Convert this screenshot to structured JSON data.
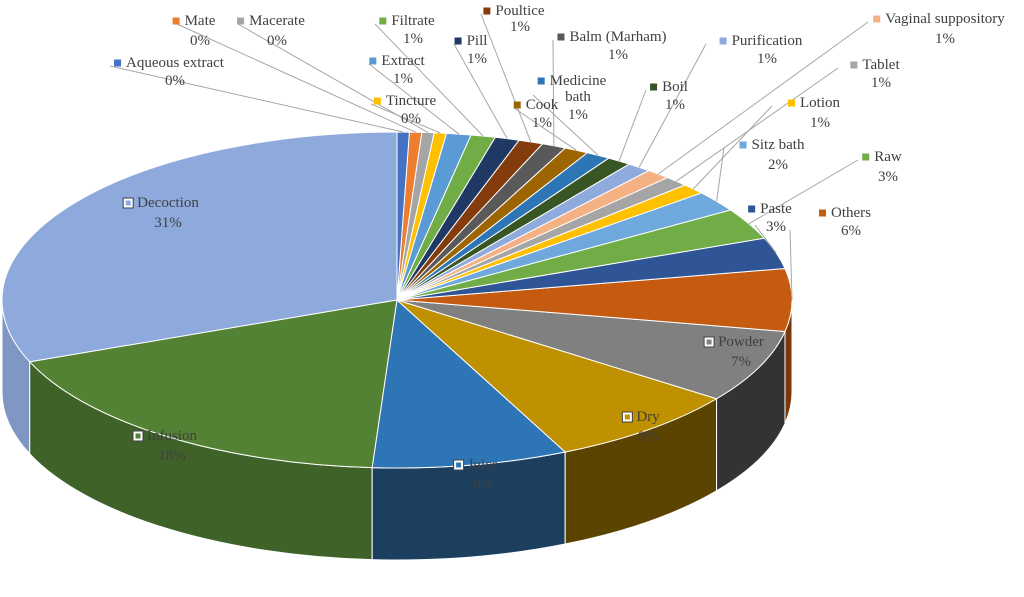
{
  "chart_data": {
    "type": "pie",
    "title": "",
    "slices": [
      {
        "label": "Decoction",
        "value": 31,
        "pct_label": "31%",
        "color": "#8EA9DB",
        "side": "#7F97C2"
      },
      {
        "label": "Infusion",
        "value": 18,
        "pct_label": "18%",
        "color": "#548235",
        "side": "#3F6228"
      },
      {
        "label": "Juice",
        "value": 8,
        "pct_label": "8%",
        "color": "#2E75B6",
        "side": "#1C3F60"
      },
      {
        "label": "Dry",
        "value": 8,
        "pct_label": "8%",
        "color": "#BF9000",
        "side": "#5B4300"
      },
      {
        "label": "Powder",
        "value": 7,
        "pct_label": "7%",
        "color": "#808080",
        "side": "#333333"
      },
      {
        "label": "Others",
        "value": 6,
        "pct_label": "6%",
        "color": "#C55A11",
        "side": "#7A3708"
      },
      {
        "label": "Paste",
        "value": 3,
        "pct_label": "3%",
        "color": "#2F5597",
        "side": "#1F3864"
      },
      {
        "label": "Raw",
        "value": 3,
        "pct_label": "3%",
        "color": "#70AD47",
        "side": "#4E7A32"
      },
      {
        "label": "Sitz bath",
        "value": 2,
        "pct_label": "2%",
        "color": "#6FA8DC",
        "side": "#4E7A9E"
      },
      {
        "label": "Lotion",
        "value": 1,
        "pct_label": "1%",
        "color": "#FFC000",
        "side": "#B38600"
      },
      {
        "label": "Tablet",
        "value": 1,
        "pct_label": "1%",
        "color": "#A5A5A5",
        "side": "#737373"
      },
      {
        "label": "Vaginal suppository",
        "value": 1,
        "pct_label": "1%",
        "color": "#F4B183",
        "side": "#B07E5C"
      },
      {
        "label": "Purification",
        "value": 1,
        "pct_label": "1%",
        "color": "#8FAADC",
        "side": "#64779A"
      },
      {
        "label": "Boil",
        "value": 1,
        "pct_label": "1%",
        "color": "#375623",
        "side": "#253A18"
      },
      {
        "label": "Medicine bath",
        "value": 1,
        "pct_label": "1%",
        "color": "#2E75B6",
        "side": "#1C4A73"
      },
      {
        "label": "Cook",
        "value": 1,
        "pct_label": "1%",
        "color": "#9C6500",
        "side": "#694400"
      },
      {
        "label": "Balm (Marham)",
        "value": 1,
        "pct_label": "1%",
        "color": "#595959",
        "side": "#3B3B3B"
      },
      {
        "label": "Poultice",
        "value": 1,
        "pct_label": "1%",
        "color": "#843C0C",
        "side": "#582808"
      },
      {
        "label": "Pill",
        "value": 1,
        "pct_label": "1%",
        "color": "#203864",
        "side": "#152543"
      },
      {
        "label": "Filtrate",
        "value": 1,
        "pct_label": "1%",
        "color": "#70AD47",
        "side": "#4E7A32"
      },
      {
        "label": "Extract",
        "value": 1,
        "pct_label": "1%",
        "color": "#5B9BD5",
        "side": "#3F6D95"
      },
      {
        "label": "Tincture",
        "value": 0.5,
        "pct_label": "0%",
        "color": "#FFC000",
        "side": "#B38600"
      },
      {
        "label": "Macerate",
        "value": 0.5,
        "pct_label": "0%",
        "color": "#A5A5A5",
        "side": "#737373"
      },
      {
        "label": "Mate",
        "value": 0.5,
        "pct_label": "0%",
        "color": "#ED7D31",
        "side": "#A65722"
      },
      {
        "label": "Aqueous extract",
        "value": 0.5,
        "pct_label": "0%",
        "color": "#4472C4",
        "side": "#2F5089"
      }
    ]
  }
}
